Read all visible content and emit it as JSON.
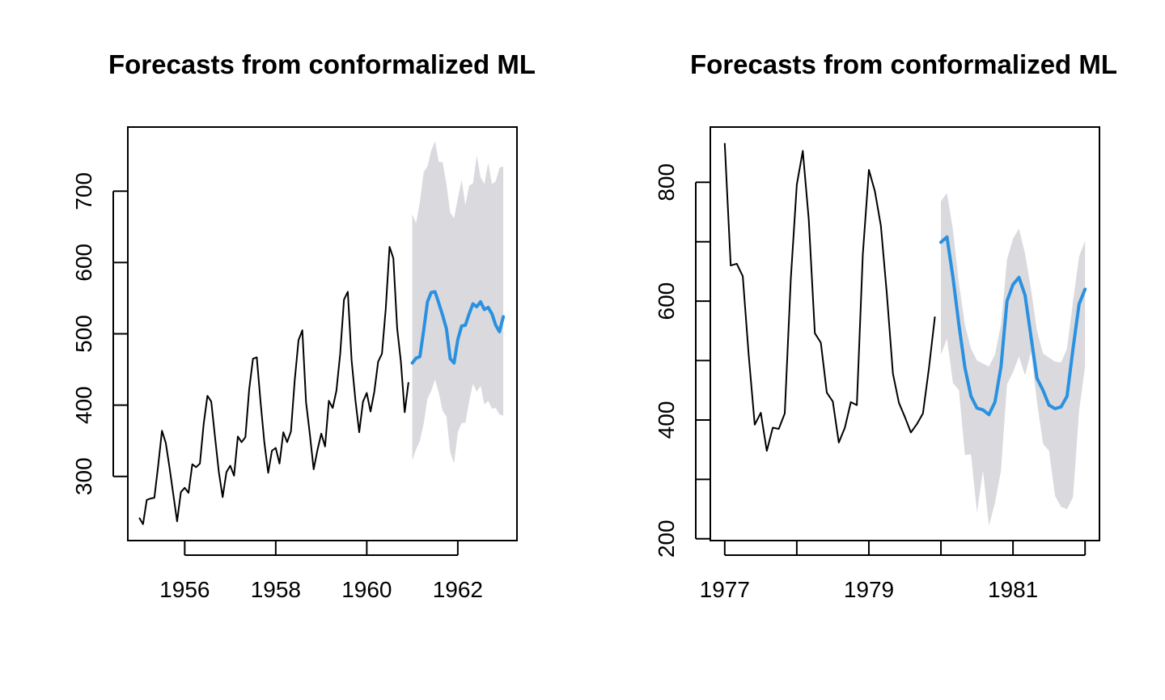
{
  "chart_data": [
    {
      "type": "line",
      "title": "Forecasts from conformalized ML",
      "xlabel": "",
      "ylabel": "",
      "xlim": [
        1954.75,
        1963.3
      ],
      "ylim": [
        210,
        790
      ],
      "x_ticks": [
        1956,
        1958,
        1960,
        1962
      ],
      "y_ticks": [
        300,
        400,
        500,
        600,
        700
      ],
      "x_tick_labels": [
        "1956",
        "1958",
        "1960",
        "1962"
      ],
      "y_tick_labels": [
        "300",
        "400",
        "500",
        "600",
        "700"
      ],
      "grid": false,
      "colors": {
        "observed": "#000000",
        "forecast": "#2a91e0",
        "interval": "#dadade"
      },
      "series": [
        {
          "role": "observed",
          "x_start": 1955.0,
          "x_step": 0.083333,
          "values": [
            242,
            233,
            267,
            269,
            270,
            315,
            364,
            347,
            312,
            274,
            237,
            278,
            284,
            277,
            317,
            313,
            318,
            374,
            413,
            405,
            355,
            306,
            271,
            306,
            315,
            301,
            356,
            348,
            355,
            422,
            465,
            467,
            404,
            347,
            305,
            336,
            340,
            318,
            362,
            348,
            363,
            435,
            491,
            505,
            404,
            359,
            310,
            337,
            360,
            342,
            406,
            396,
            420,
            472,
            548,
            559,
            463,
            407,
            362,
            405,
            417,
            391,
            419,
            461,
            472,
            535,
            622,
            606,
            508,
            461,
            390,
            432
          ]
        },
        {
          "role": "forecast",
          "x_start": 1961.0,
          "x_step": 0.083333,
          "values": [
            459,
            466,
            468,
            505,
            545,
            558,
            559,
            543,
            526,
            507,
            465,
            459,
            492,
            511,
            512,
            528,
            542,
            538,
            545,
            534,
            537,
            528,
            512,
            503,
            524
          ]
        },
        {
          "role": "interval",
          "x_start": 1961.0,
          "x_step": 0.083333,
          "upper": [
            668,
            655,
            685,
            727,
            735,
            757,
            770,
            741,
            741,
            710,
            670,
            662,
            690,
            716,
            680,
            708,
            711,
            750,
            720,
            710,
            740,
            710,
            714,
            733,
            735
          ],
          "lower": [
            322,
            338,
            350,
            374,
            409,
            420,
            436,
            417,
            392,
            384,
            334,
            318,
            362,
            375,
            375,
            405,
            430,
            419,
            427,
            401,
            406,
            395,
            396,
            387,
            385
          ]
        }
      ]
    },
    {
      "type": "line",
      "title": "Forecasts from conformalized ML",
      "xlabel": "",
      "ylabel": "",
      "xlim": [
        1976.8,
        1982.2
      ],
      "ylim": [
        197,
        893
      ],
      "x_ticks": [
        1977,
        1978,
        1979,
        1980,
        1981,
        1982
      ],
      "y_ticks": [
        200,
        300,
        400,
        500,
        600,
        700,
        800
      ],
      "x_tick_labels": [
        "1977",
        "1979",
        "1981"
      ],
      "y_tick_labels": [
        "200",
        "400",
        "600",
        "800"
      ],
      "grid": false,
      "colors": {
        "observed": "#000000",
        "forecast": "#2a91e0",
        "interval": "#dadade"
      },
      "series": [
        {
          "role": "observed",
          "x_start": 1977.0,
          "x_step": 0.083333,
          "values": [
            866,
            660,
            663,
            642,
            508,
            392,
            412,
            348,
            387,
            385,
            411,
            638,
            796,
            853,
            737,
            546,
            530,
            446,
            431,
            362,
            387,
            430,
            425,
            679,
            821,
            785,
            727,
            612,
            478,
            429,
            405,
            379,
            393,
            411,
            487,
            574
          ]
        },
        {
          "role": "forecast",
          "x_start": 1980.0,
          "x_step": 0.083333,
          "values": [
            699,
            708,
            640,
            560,
            488,
            440,
            420,
            417,
            409,
            430,
            490,
            600,
            628,
            640,
            610,
            540,
            470,
            450,
            425,
            419,
            422,
            440,
            520,
            595,
            620
          ]
        },
        {
          "role": "interval",
          "x_start": 1980.0,
          "x_step": 0.083333,
          "upper": [
            768,
            782,
            720,
            630,
            560,
            520,
            500,
            495,
            490,
            510,
            560,
            670,
            705,
            722,
            680,
            620,
            550,
            512,
            505,
            498,
            497,
            520,
            600,
            675,
            702
          ],
          "lower": [
            510,
            537,
            462,
            450,
            341,
            342,
            244,
            315,
            222,
            260,
            315,
            460,
            480,
            507,
            475,
            515,
            430,
            360,
            348,
            272,
            254,
            250,
            270,
            415,
            490
          ]
        }
      ]
    }
  ]
}
